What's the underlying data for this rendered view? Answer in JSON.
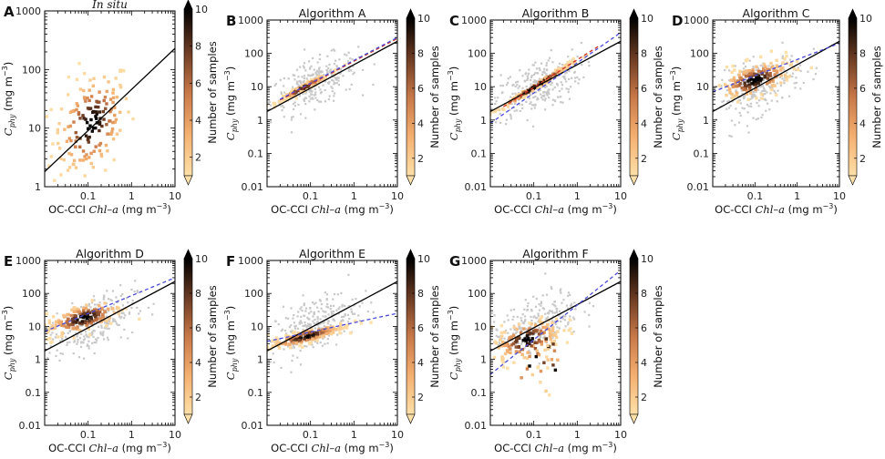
{
  "figure": {
    "x_axis_label_prefix": "OC-CCI ",
    "x_axis_label_italic": "Chl–a",
    "x_axis_label_unit": " (mg m",
    "x_axis_label_exp": "−3",
    "x_axis_label_close": ")",
    "y_axis_label_main": "C",
    "y_axis_label_sub": "phy",
    "y_axis_label_unit": " (mg m",
    "y_axis_label_exp": "−3",
    "y_axis_label_close": ")",
    "colorbar_label": "Number of samples",
    "colorbar_ticks": [
      "2",
      "4",
      "6",
      "8",
      "10"
    ],
    "colors": {
      "background_points": "#c8c8c8",
      "fit_line": "#000000",
      "regression_line": "#4a4adc",
      "red_line": "#d03020",
      "cmap_low": "#fdd9a0",
      "cmap_mid": "#d88850",
      "cmap_high": "#000000"
    }
  },
  "chart_data": [
    {
      "type": "scatter",
      "panel": "A",
      "title": "In situ",
      "title_italic": true,
      "xlim": [
        0.01,
        10
      ],
      "ylim": [
        1,
        1000
      ],
      "x_ticks": [
        "0.1",
        "1",
        "10"
      ],
      "y_ticks": [
        "1",
        "10",
        "100",
        "1000"
      ],
      "one_to_one_line": {
        "x": [
          0.01,
          10
        ],
        "y": [
          1.8,
          230
        ]
      },
      "regression_line": null,
      "red_line": null,
      "density_cluster": {
        "x_center": 0.12,
        "y_center": 12,
        "x_spread_decades": 0.45,
        "y_spread_decades": 0.45,
        "max_count": 10
      },
      "background_cloud": null
    },
    {
      "type": "scatter",
      "panel": "B",
      "title": "Algorithm A",
      "title_italic": false,
      "xlim": [
        0.01,
        10
      ],
      "ylim": [
        0.01,
        1000
      ],
      "x_ticks": [
        "0.1",
        "1",
        "10"
      ],
      "y_ticks": [
        "0.01",
        "0.1",
        "1",
        "10",
        "100",
        "1000"
      ],
      "one_to_one_line": {
        "x": [
          0.01,
          10
        ],
        "y": [
          1.8,
          230
        ]
      },
      "regression_line": {
        "x": [
          0.02,
          10
        ],
        "y": [
          4.2,
          300
        ]
      },
      "red_line": {
        "x": [
          0.02,
          10
        ],
        "y": [
          4.0,
          280
        ]
      },
      "density_cluster": {
        "x_center": 0.07,
        "y_center": 11,
        "x_spread_decades": 0.3,
        "y_spread_decades": 0.05,
        "max_count": 10,
        "along_line": true
      },
      "background_cloud": {
        "x_center": 0.12,
        "y_center": 12,
        "x_spread_decades": 0.5,
        "y_spread_decades": 0.35
      }
    },
    {
      "type": "scatter",
      "panel": "C",
      "title": "Algorithm B",
      "title_italic": false,
      "xlim": [
        0.01,
        10
      ],
      "ylim": [
        0.01,
        1000
      ],
      "x_ticks": [
        "0.1",
        "1",
        "10"
      ],
      "y_ticks": [
        "0.01",
        "0.1",
        "1",
        "10",
        "100",
        "1000"
      ],
      "one_to_one_line": {
        "x": [
          0.01,
          10
        ],
        "y": [
          1.8,
          230
        ]
      },
      "regression_line": {
        "x": [
          0.01,
          10
        ],
        "y": [
          0.8,
          420
        ]
      },
      "red_line": {
        "x": [
          0.02,
          3
        ],
        "y": [
          2.5,
          160
        ]
      },
      "density_cluster": {
        "x_center": 0.12,
        "y_center": 10,
        "x_spread_decades": 0.5,
        "y_spread_decades": 0.05,
        "max_count": 10,
        "along_line": true
      },
      "background_cloud": {
        "x_center": 0.12,
        "y_center": 10,
        "x_spread_decades": 0.5,
        "y_spread_decades": 0.4
      }
    },
    {
      "type": "scatter",
      "panel": "D",
      "title": "Algorithm C",
      "title_italic": false,
      "xlim": [
        0.01,
        10
      ],
      "ylim": [
        0.01,
        1000
      ],
      "x_ticks": [
        "0.1",
        "1",
        "10"
      ],
      "y_ticks": [
        "0.01",
        "0.1",
        "1",
        "10",
        "100",
        "1000"
      ],
      "one_to_one_line": {
        "x": [
          0.01,
          10
        ],
        "y": [
          1.8,
          230
        ]
      },
      "regression_line": {
        "x": [
          0.01,
          10
        ],
        "y": [
          7,
          200
        ]
      },
      "red_line": null,
      "density_cluster": {
        "x_center": 0.1,
        "y_center": 16,
        "x_spread_decades": 0.45,
        "y_spread_decades": 0.25,
        "max_count": 10
      },
      "background_cloud": {
        "x_center": 0.12,
        "y_center": 10,
        "x_spread_decades": 0.5,
        "y_spread_decades": 0.4
      }
    },
    {
      "type": "scatter",
      "panel": "E",
      "title": "Algorithm D",
      "title_italic": false,
      "xlim": [
        0.01,
        10
      ],
      "ylim": [
        0.01,
        1000
      ],
      "x_ticks": [
        "0.1",
        "1",
        "10"
      ],
      "y_ticks": [
        "0.01",
        "0.1",
        "1",
        "10",
        "100",
        "1000"
      ],
      "one_to_one_line": {
        "x": [
          0.01,
          10
        ],
        "y": [
          1.8,
          230
        ]
      },
      "regression_line": {
        "x": [
          0.01,
          10
        ],
        "y": [
          7,
          300
        ]
      },
      "red_line": null,
      "density_cluster": {
        "x_center": 0.08,
        "y_center": 18,
        "x_spread_decades": 0.45,
        "y_spread_decades": 0.22,
        "max_count": 10
      },
      "background_cloud": {
        "x_center": 0.12,
        "y_center": 12,
        "x_spread_decades": 0.5,
        "y_spread_decades": 0.4
      }
    },
    {
      "type": "scatter",
      "panel": "F",
      "title": "Algorithm E",
      "title_italic": false,
      "xlim": [
        0.01,
        10
      ],
      "ylim": [
        0.01,
        1000
      ],
      "x_ticks": [
        "0.1",
        "1",
        "10"
      ],
      "y_ticks": [
        "0.01",
        "0.1",
        "1",
        "10",
        "100",
        "1000"
      ],
      "one_to_one_line": {
        "x": [
          0.01,
          10
        ],
        "y": [
          1.8,
          230
        ]
      },
      "regression_line": {
        "x": [
          0.01,
          10
        ],
        "y": [
          3.5,
          25
        ]
      },
      "red_line": null,
      "density_cluster": {
        "x_center": 0.08,
        "y_center": 5,
        "x_spread_decades": 0.45,
        "y_spread_decades": 0.1,
        "max_count": 10
      },
      "background_cloud": {
        "x_center": 0.12,
        "y_center": 12,
        "x_spread_decades": 0.5,
        "y_spread_decades": 0.4
      }
    },
    {
      "type": "scatter",
      "panel": "G",
      "title": "Algorithm F",
      "title_italic": false,
      "xlim": [
        0.01,
        10
      ],
      "ylim": [
        0.01,
        1000
      ],
      "x_ticks": [
        "0.1",
        "1",
        "10"
      ],
      "y_ticks": [
        "0.01",
        "0.1",
        "1",
        "10",
        "100",
        "1000"
      ],
      "one_to_one_line": {
        "x": [
          0.01,
          10
        ],
        "y": [
          1.8,
          230
        ]
      },
      "regression_line": {
        "x": [
          0.01,
          10
        ],
        "y": [
          0.35,
          500
        ]
      },
      "red_line": null,
      "density_cluster": {
        "x_center": 0.07,
        "y_center": 4,
        "x_spread_decades": 0.4,
        "y_spread_decades": 0.3,
        "max_count": 10,
        "tail_down": true
      },
      "background_cloud": {
        "x_center": 0.12,
        "y_center": 12,
        "x_spread_decades": 0.5,
        "y_spread_decades": 0.4
      }
    }
  ]
}
